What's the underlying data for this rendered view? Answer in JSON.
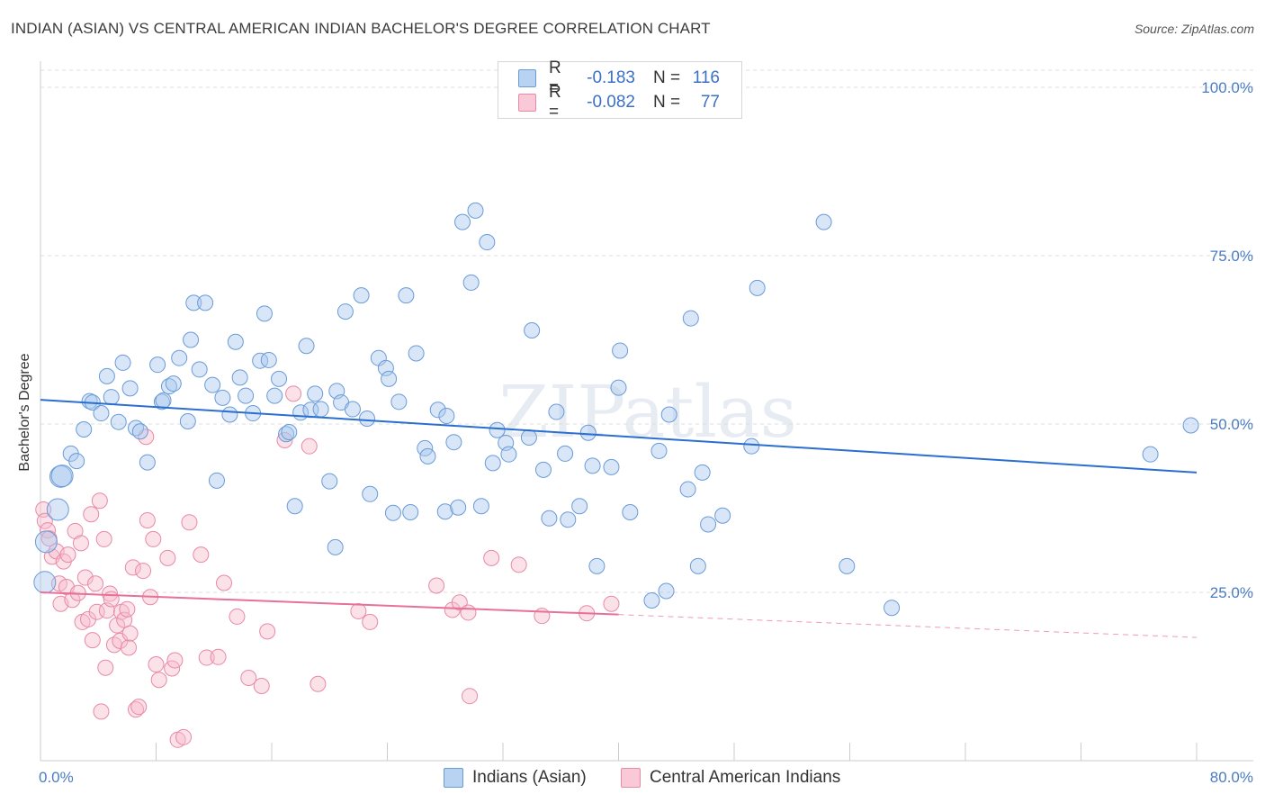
{
  "header": {
    "title": "INDIAN (ASIAN) VS CENTRAL AMERICAN INDIAN BACHELOR'S DEGREE CORRELATION CHART",
    "source": "Source: ZipAtlas.com"
  },
  "watermark": "ZIPatlas",
  "legend_top": {
    "rows": [
      {
        "r_label": "R =",
        "r_value": "-0.183",
        "n_label": "N =",
        "n_value": "116"
      },
      {
        "r_label": "R =",
        "r_value": "-0.082",
        "n_label": "N =",
        "n_value": "77"
      }
    ]
  },
  "legend_bottom": {
    "series1": "Indians (Asian)",
    "series2": "Central American Indians"
  },
  "colors": {
    "blue_fill": "#a9c8ee",
    "blue_stroke": "#6a9bd8",
    "blue_line": "#2a6fd0",
    "pink_fill": "#f6bccd",
    "pink_stroke": "#e889a8",
    "pink_line": "#e8709a",
    "axis_text": "#4a7cc4",
    "grid": "#dddddd"
  },
  "chart_data": {
    "type": "scatter",
    "title": "INDIAN (ASIAN) VS CENTRAL AMERICAN INDIAN BACHELOR'S DEGREE CORRELATION CHART",
    "xlabel": "",
    "ylabel": "Bachelor's Degree",
    "xlim": [
      0,
      80
    ],
    "ylim": [
      0,
      100
    ],
    "x_tick_labels": [
      "0.0%",
      "80.0%"
    ],
    "y_tick_labels": [
      "25.0%",
      "50.0%",
      "75.0%",
      "100.0%"
    ],
    "y_ticks": [
      25,
      50,
      75,
      100
    ],
    "grid": true,
    "legend_position": "top-center",
    "series": [
      {
        "name": "Indians (Asian)",
        "color": "#6a9bd8",
        "trend": {
          "x": [
            0,
            80
          ],
          "y": [
            53.6,
            42.8
          ]
        },
        "points": [
          [
            0.3,
            26.5
          ],
          [
            0.4,
            32.5
          ],
          [
            1.2,
            37.3
          ],
          [
            1.4,
            42.2
          ],
          [
            1.5,
            42.3
          ],
          [
            2.1,
            45.6
          ],
          [
            2.5,
            44.5
          ],
          [
            3.0,
            49.2
          ],
          [
            3.4,
            53.4
          ],
          [
            3.6,
            53.2
          ],
          [
            4.2,
            51.6
          ],
          [
            4.6,
            57.1
          ],
          [
            4.9,
            54.0
          ],
          [
            5.4,
            50.3
          ],
          [
            5.7,
            59.1
          ],
          [
            6.2,
            55.3
          ],
          [
            6.6,
            49.4
          ],
          [
            6.9,
            48.9
          ],
          [
            7.4,
            44.3
          ],
          [
            8.1,
            58.8
          ],
          [
            8.4,
            53.3
          ],
          [
            8.5,
            53.5
          ],
          [
            8.9,
            55.6
          ],
          [
            9.2,
            56.0
          ],
          [
            9.6,
            59.8
          ],
          [
            10.2,
            50.4
          ],
          [
            10.4,
            62.5
          ],
          [
            10.6,
            68.0
          ],
          [
            11.0,
            58.1
          ],
          [
            11.4,
            68.0
          ],
          [
            11.9,
            55.8
          ],
          [
            12.2,
            41.6
          ],
          [
            12.6,
            53.9
          ],
          [
            13.1,
            51.4
          ],
          [
            13.5,
            62.2
          ],
          [
            13.8,
            56.9
          ],
          [
            14.2,
            54.2
          ],
          [
            14.7,
            51.6
          ],
          [
            15.2,
            59.4
          ],
          [
            15.5,
            66.4
          ],
          [
            15.8,
            59.5
          ],
          [
            16.2,
            54.2
          ],
          [
            16.5,
            56.7
          ],
          [
            17.0,
            48.5
          ],
          [
            17.2,
            48.8
          ],
          [
            17.6,
            37.8
          ],
          [
            18.0,
            51.7
          ],
          [
            18.4,
            61.6
          ],
          [
            18.7,
            52.1
          ],
          [
            19.0,
            54.5
          ],
          [
            19.4,
            52.2
          ],
          [
            20.0,
            41.5
          ],
          [
            20.4,
            31.7
          ],
          [
            20.5,
            54.9
          ],
          [
            20.8,
            53.2
          ],
          [
            21.1,
            66.7
          ],
          [
            21.6,
            52.2
          ],
          [
            22.2,
            69.1
          ],
          [
            22.6,
            50.8
          ],
          [
            22.8,
            39.6
          ],
          [
            23.4,
            59.8
          ],
          [
            23.9,
            58.3
          ],
          [
            24.1,
            56.7
          ],
          [
            24.4,
            36.8
          ],
          [
            24.8,
            53.3
          ],
          [
            25.3,
            69.1
          ],
          [
            25.6,
            36.9
          ],
          [
            26.0,
            60.5
          ],
          [
            26.6,
            46.4
          ],
          [
            26.8,
            45.2
          ],
          [
            27.5,
            52.1
          ],
          [
            28.0,
            37.0
          ],
          [
            28.1,
            51.2
          ],
          [
            28.6,
            47.3
          ],
          [
            28.9,
            37.6
          ],
          [
            29.2,
            80.0
          ],
          [
            29.8,
            71.0
          ],
          [
            30.1,
            81.7
          ],
          [
            30.5,
            37.8
          ],
          [
            30.9,
            77.0
          ],
          [
            31.3,
            44.2
          ],
          [
            31.6,
            49.1
          ],
          [
            32.2,
            47.2
          ],
          [
            32.4,
            45.5
          ],
          [
            34.0,
            63.9
          ],
          [
            33.8,
            48.0
          ],
          [
            34.8,
            43.2
          ],
          [
            35.2,
            36.0
          ],
          [
            35.7,
            51.8
          ],
          [
            36.3,
            45.6
          ],
          [
            36.5,
            35.8
          ],
          [
            37.3,
            37.8
          ],
          [
            37.9,
            48.7
          ],
          [
            38.2,
            43.8
          ],
          [
            38.5,
            28.9
          ],
          [
            39.5,
            43.6
          ],
          [
            40.0,
            55.4
          ],
          [
            40.1,
            60.9
          ],
          [
            40.8,
            36.9
          ],
          [
            42.3,
            23.8
          ],
          [
            42.8,
            46.0
          ],
          [
            43.3,
            25.2
          ],
          [
            43.5,
            51.4
          ],
          [
            44.8,
            40.3
          ],
          [
            45.0,
            65.7
          ],
          [
            45.5,
            28.9
          ],
          [
            45.8,
            42.8
          ],
          [
            46.2,
            35.1
          ],
          [
            47.2,
            36.4
          ],
          [
            49.2,
            46.7
          ],
          [
            49.6,
            70.2
          ],
          [
            54.2,
            80.0
          ],
          [
            55.8,
            28.9
          ],
          [
            58.9,
            22.7
          ],
          [
            76.8,
            45.5
          ],
          [
            79.6,
            49.8
          ]
        ]
      },
      {
        "name": "Central American Indians",
        "color": "#e889a8",
        "trend": {
          "x": [
            0,
            40
          ],
          "y": [
            25.0,
            21.7
          ]
        },
        "trend_dashed": {
          "x": [
            40,
            80
          ],
          "y": [
            21.7,
            18.3
          ]
        },
        "points": [
          [
            0.2,
            37.3
          ],
          [
            0.3,
            35.6
          ],
          [
            0.5,
            34.2
          ],
          [
            0.6,
            33.0
          ],
          [
            0.8,
            30.3
          ],
          [
            1.1,
            31.1
          ],
          [
            1.3,
            26.3
          ],
          [
            1.4,
            23.3
          ],
          [
            1.6,
            29.6
          ],
          [
            1.8,
            25.8
          ],
          [
            1.9,
            30.6
          ],
          [
            2.2,
            23.9
          ],
          [
            2.4,
            34.1
          ],
          [
            2.6,
            24.9
          ],
          [
            2.8,
            32.3
          ],
          [
            2.9,
            20.6
          ],
          [
            3.1,
            27.2
          ],
          [
            3.3,
            21.0
          ],
          [
            3.5,
            36.6
          ],
          [
            3.6,
            17.9
          ],
          [
            3.8,
            26.3
          ],
          [
            3.9,
            22.1
          ],
          [
            4.1,
            38.6
          ],
          [
            4.2,
            7.3
          ],
          [
            4.4,
            32.9
          ],
          [
            4.5,
            13.8
          ],
          [
            4.6,
            22.3
          ],
          [
            4.8,
            24.8
          ],
          [
            4.9,
            24.0
          ],
          [
            5.1,
            17.2
          ],
          [
            5.3,
            20.1
          ],
          [
            5.5,
            17.8
          ],
          [
            5.6,
            22.1
          ],
          [
            5.8,
            20.9
          ],
          [
            6.0,
            22.5
          ],
          [
            6.1,
            16.8
          ],
          [
            6.2,
            18.9
          ],
          [
            6.4,
            28.7
          ],
          [
            6.6,
            7.6
          ],
          [
            6.8,
            8.0
          ],
          [
            7.1,
            28.2
          ],
          [
            7.3,
            48.1
          ],
          [
            7.4,
            35.7
          ],
          [
            7.6,
            24.3
          ],
          [
            7.8,
            32.9
          ],
          [
            8.0,
            14.3
          ],
          [
            8.2,
            12.0
          ],
          [
            8.8,
            30.1
          ],
          [
            9.1,
            13.7
          ],
          [
            9.3,
            14.9
          ],
          [
            9.5,
            3.1
          ],
          [
            9.9,
            3.5
          ],
          [
            10.3,
            35.4
          ],
          [
            11.1,
            30.6
          ],
          [
            11.5,
            15.3
          ],
          [
            12.3,
            15.4
          ],
          [
            12.7,
            26.4
          ],
          [
            13.6,
            21.4
          ],
          [
            14.4,
            12.3
          ],
          [
            15.3,
            11.1
          ],
          [
            15.7,
            19.2
          ],
          [
            17.5,
            54.5
          ],
          [
            16.9,
            47.6
          ],
          [
            18.6,
            46.7
          ],
          [
            19.2,
            11.4
          ],
          [
            22.0,
            22.2
          ],
          [
            22.8,
            20.6
          ],
          [
            27.4,
            26.0
          ],
          [
            28.5,
            22.4
          ],
          [
            29.0,
            23.5
          ],
          [
            29.6,
            22.0
          ],
          [
            29.7,
            9.6
          ],
          [
            31.2,
            30.1
          ],
          [
            33.1,
            29.1
          ],
          [
            34.7,
            21.5
          ],
          [
            39.5,
            23.3
          ],
          [
            37.8,
            21.9
          ]
        ]
      }
    ]
  }
}
